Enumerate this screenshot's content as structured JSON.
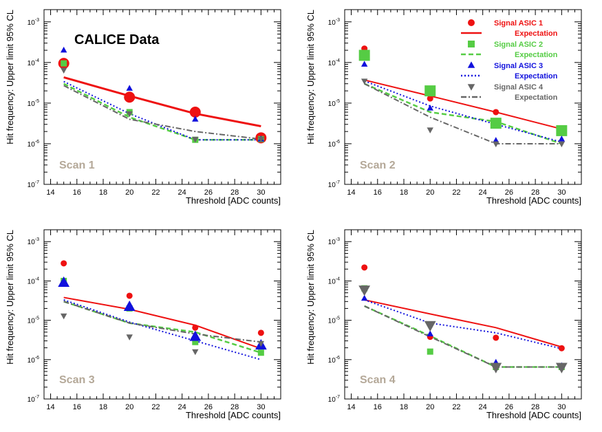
{
  "figure": {
    "brand_label": "CALICE Data",
    "y_axis_label": "Hit frequency: Upper limit 95% CL",
    "x_axis_label": "Threshold [ADC counts]",
    "x_ticks": [
      14,
      16,
      18,
      20,
      22,
      24,
      26,
      28,
      30
    ],
    "y_tick_labels": [
      {
        "base": "10",
        "exp": "-7",
        "value": 1e-07
      },
      {
        "base": "10",
        "exp": "-6",
        "value": 1e-06
      },
      {
        "base": "10",
        "exp": "-5",
        "value": 1e-05
      },
      {
        "base": "10",
        "exp": "-4",
        "value": 0.0001
      },
      {
        "base": "10",
        "exp": "-3",
        "value": 0.001
      }
    ],
    "colors": {
      "asic1": "#ee1111",
      "asic2": "#55cc44",
      "asic3": "#1111dd",
      "asic4": "#666666",
      "scan_label": "#b4a898",
      "axis": "#000000"
    },
    "legend": [
      {
        "signal": "Signal ASIC 1",
        "expectation": "Expectation",
        "marker": "circle",
        "line": "solid",
        "color_key": "asic1"
      },
      {
        "signal": "Signal ASIC 2",
        "expectation": "Expectation",
        "marker": "square",
        "line": "dashed",
        "color_key": "asic2"
      },
      {
        "signal": "Signal ASIC 3",
        "expectation": "Expectation",
        "marker": "triangle-up",
        "line": "dotted",
        "color_key": "asic3"
      },
      {
        "signal": "Signal ASIC 4",
        "expectation": "Expectation",
        "marker": "triangle-down",
        "line": "dashdot",
        "color_key": "asic4"
      }
    ]
  },
  "chart_data": [
    {
      "type": "scatter",
      "title": "Scan 1",
      "xlabel": "Threshold [ADC counts]",
      "ylabel": "Hit frequency: Upper limit 95% CL",
      "xlim": [
        13.5,
        31.5
      ],
      "ylim": [
        1e-07,
        0.002
      ],
      "yscale": "log",
      "x": [
        15,
        20,
        25,
        30
      ],
      "series": [
        {
          "name": "Signal ASIC 1",
          "values": [
            9.5e-05,
            1.4e-05,
            6e-06,
            1.4e-06
          ],
          "sizes": [
            "large",
            "large",
            "large",
            "large"
          ]
        },
        {
          "name": "Signal ASIC 2",
          "values": [
            9.5e-05,
            6e-06,
            1.25e-06,
            1.3e-06
          ],
          "sizes": [
            "small",
            "small",
            "small",
            "small"
          ]
        },
        {
          "name": "Signal ASIC 3",
          "values": [
            0.0002,
            2.3e-05,
            4e-06,
            1.3e-06
          ],
          "sizes": [
            "small",
            "small",
            "small",
            "small"
          ]
        },
        {
          "name": "Signal ASIC 4",
          "values": [
            6.5e-05,
            5.5e-06,
            1.3e-06,
            1.3e-06
          ],
          "sizes": [
            "small",
            "small",
            "small",
            "small"
          ]
        }
      ],
      "expectations": [
        {
          "name": "Expectation ASIC 1",
          "values": [
            4.3e-05,
            1.5e-05,
            5.5e-06,
            2.7e-06
          ]
        },
        {
          "name": "Expectation ASIC 2",
          "values": [
            3e-05,
            4.5e-06,
            1.25e-06,
            1.25e-06
          ]
        },
        {
          "name": "Expectation ASIC 3",
          "values": [
            3.4e-05,
            5.5e-06,
            1.25e-06,
            1.25e-06
          ]
        },
        {
          "name": "Expectation ASIC 4",
          "values": [
            2.7e-05,
            4e-06,
            2e-06,
            1.3e-06
          ]
        }
      ]
    },
    {
      "type": "scatter",
      "title": "Scan 2",
      "xlabel": "Threshold [ADC counts]",
      "ylabel": "Hit frequency: Upper limit 95% CL",
      "xlim": [
        13.5,
        31.5
      ],
      "ylim": [
        1e-07,
        0.002
      ],
      "yscale": "log",
      "x": [
        15,
        20,
        25,
        30
      ],
      "series": [
        {
          "name": "Signal ASIC 1",
          "values": [
            0.00022,
            1.3e-05,
            6e-06,
            2.3e-06
          ],
          "sizes": [
            "small",
            "small",
            "small",
            "small"
          ]
        },
        {
          "name": "Signal ASIC 2",
          "values": [
            0.00015,
            2e-05,
            3.2e-06,
            2.1e-06
          ],
          "sizes": [
            "large",
            "large",
            "large",
            "large"
          ]
        },
        {
          "name": "Signal ASIC 3",
          "values": [
            9e-05,
            7.5e-06,
            1.2e-06,
            1.3e-06
          ],
          "sizes": [
            "small",
            "small",
            "small",
            "small"
          ]
        },
        {
          "name": "Signal ASIC 4",
          "values": [
            3.5e-05,
            2.2e-06,
            1e-06,
            1e-06
          ],
          "sizes": [
            "small",
            "small",
            "small",
            "small"
          ]
        }
      ],
      "expectations": [
        {
          "name": "Expectation ASIC 1",
          "values": [
            3.7e-05,
            1.5e-05,
            6e-06,
            2.3e-06
          ]
        },
        {
          "name": "Expectation ASIC 2",
          "values": [
            3e-05,
            6e-06,
            3.5e-06,
            1e-06
          ]
        },
        {
          "name": "Expectation ASIC 3",
          "values": [
            3.5e-05,
            8.5e-06,
            3e-06,
            1.1e-06
          ]
        },
        {
          "name": "Expectation ASIC 4",
          "values": [
            3e-05,
            4.5e-06,
            1e-06,
            1e-06
          ]
        }
      ]
    },
    {
      "type": "scatter",
      "title": "Scan 3",
      "xlabel": "Threshold [ADC counts]",
      "ylabel": "Hit frequency: Upper limit 95% CL",
      "xlim": [
        13.5,
        31.5
      ],
      "ylim": [
        1e-07,
        0.002
      ],
      "yscale": "log",
      "x": [
        15,
        20,
        25,
        30
      ],
      "series": [
        {
          "name": "Signal ASIC 1",
          "values": [
            0.00028,
            4.2e-05,
            6.5e-06,
            4.8e-06
          ],
          "sizes": [
            "small",
            "small",
            "small",
            "small"
          ]
        },
        {
          "name": "Signal ASIC 2",
          "values": [
            0.0001,
            2e-05,
            2.8e-06,
            1.5e-06
          ],
          "sizes": [
            "small",
            "small",
            "small",
            "small"
          ]
        },
        {
          "name": "Signal ASIC 3",
          "values": [
            9e-05,
            2.2e-05,
            3.8e-06,
            2.3e-06
          ],
          "sizes": [
            "large",
            "large",
            "large",
            "large"
          ]
        },
        {
          "name": "Signal ASIC 4",
          "values": [
            1.3e-05,
            3.8e-06,
            1.6e-06,
            2.6e-06
          ],
          "sizes": [
            "small",
            "small",
            "small",
            "small"
          ]
        }
      ],
      "expectations": [
        {
          "name": "Expectation ASIC 1",
          "values": [
            3.8e-05,
            1.9e-05,
            7.5e-06,
            1.9e-06
          ]
        },
        {
          "name": "Expectation ASIC 2",
          "values": [
            3e-05,
            8.5e-06,
            5e-06,
            1.5e-06
          ]
        },
        {
          "name": "Expectation ASIC 3",
          "values": [
            3.3e-05,
            9e-06,
            3e-06,
            1e-06
          ]
        },
        {
          "name": "Expectation ASIC 4",
          "values": [
            3e-05,
            8.5e-06,
            4.5e-06,
            2.8e-06
          ]
        }
      ]
    },
    {
      "type": "scatter",
      "title": "Scan 4",
      "xlabel": "Threshold [ADC counts]",
      "ylabel": "Hit frequency: Upper limit 95% CL",
      "xlim": [
        13.5,
        31.5
      ],
      "ylim": [
        1e-07,
        0.002
      ],
      "yscale": "log",
      "x": [
        15,
        20,
        25,
        30
      ],
      "series": [
        {
          "name": "Signal ASIC 1",
          "values": [
            0.00022,
            3.8e-06,
            3.6e-06,
            1.95e-06
          ],
          "sizes": [
            "small",
            "small",
            "small",
            "small"
          ]
        },
        {
          "name": "Signal ASIC 2",
          "values": [
            6.5e-05,
            1.6e-06,
            6.5e-07,
            6.5e-07
          ],
          "sizes": [
            "small",
            "small",
            "small",
            "small"
          ]
        },
        {
          "name": "Signal ASIC 3",
          "values": [
            3.6e-05,
            4.5e-06,
            8.5e-07,
            7e-07
          ],
          "sizes": [
            "small",
            "small",
            "small",
            "small"
          ]
        },
        {
          "name": "Signal ASIC 4",
          "values": [
            6e-05,
            7.5e-06,
            6.5e-07,
            6.5e-07
          ],
          "sizes": [
            "large",
            "large",
            "large",
            "large"
          ]
        }
      ],
      "expectations": [
        {
          "name": "Expectation ASIC 1",
          "values": [
            3.3e-05,
            1.45e-05,
            6.5e-06,
            2.1e-06
          ]
        },
        {
          "name": "Expectation ASIC 2",
          "values": [
            2.3e-05,
            4e-06,
            6.5e-07,
            6.5e-07
          ]
        },
        {
          "name": "Expectation ASIC 3",
          "values": [
            3.3e-05,
            8.5e-06,
            4.8e-06,
            1.9e-06
          ]
        },
        {
          "name": "Expectation ASIC 4",
          "values": [
            2.3e-05,
            3.8e-06,
            6.5e-07,
            6.5e-07
          ]
        }
      ]
    }
  ]
}
